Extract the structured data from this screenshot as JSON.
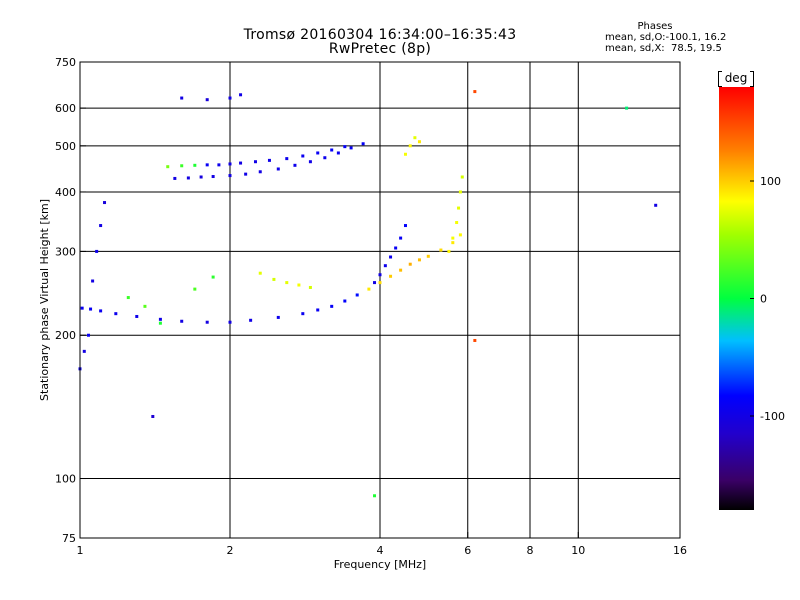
{
  "title": "Tromsø 20160304 16:34:00–16:35:43",
  "subtitle": "RwPretec (8p)",
  "stats": {
    "heading": "Phases",
    "line_o": "mean, sd,O:-100.1, 16.2",
    "line_x": "mean, sd,X:  78.5, 19.5"
  },
  "colorbar": {
    "unit": "deg",
    "tick_labels": [
      "100",
      "0",
      "-100"
    ],
    "tick_values": [
      100,
      0,
      -100
    ],
    "range": [
      -180,
      180
    ]
  },
  "chart_data": {
    "type": "scatter",
    "xlabel": "Frequency [MHz]",
    "ylabel": "Stationary phase Virtual Height [km]",
    "xscale": "log",
    "yscale": "log",
    "xlim": [
      1,
      16
    ],
    "ylim": [
      75,
      750
    ],
    "x_ticks": [
      1,
      2,
      4,
      6,
      8,
      10,
      16
    ],
    "y_ticks": [
      75,
      100,
      200,
      300,
      400,
      500,
      600,
      750
    ],
    "grid_x": [
      2,
      4,
      6,
      8,
      10
    ],
    "grid_y": [
      100,
      200,
      300,
      400,
      500,
      600
    ],
    "grid": true,
    "color_variable": "phase (deg)",
    "series": [
      {
        "x": [
          1.01,
          1.05,
          1.1,
          1.18,
          1.3,
          1.45,
          1.6,
          1.8,
          2.0,
          2.2,
          2.5,
          2.8,
          3.0,
          3.2,
          3.4,
          3.6,
          3.8,
          4.0,
          4.2,
          4.4,
          4.6,
          4.8,
          5.0,
          5.3,
          5.6,
          5.8
        ],
        "y": [
          228,
          227,
          225,
          222,
          219,
          216,
          214,
          213,
          213,
          215,
          218,
          222,
          226,
          230,
          236,
          243,
          250,
          258,
          266,
          274,
          282,
          288,
          293,
          302,
          313,
          325
        ],
        "phase": [
          -90,
          -90,
          -92,
          -94,
          -96,
          -98,
          -100,
          -102,
          -100,
          -98,
          -95,
          -92,
          -90,
          -88,
          -85,
          -80,
          90,
          95,
          100,
          105,
          110,
          105,
          100,
          95,
          90,
          85
        ]
      },
      {
        "x": [
          1.55,
          1.65,
          1.75,
          1.85,
          2.0,
          2.15,
          2.3,
          2.5,
          2.7,
          2.9,
          3.1,
          3.3,
          3.5,
          3.7
        ],
        "y": [
          427,
          428,
          430,
          431,
          433,
          436,
          441,
          447,
          455,
          463,
          472,
          483,
          495,
          505
        ],
        "phase": [
          -100,
          -102,
          -104,
          -100,
          -100,
          -98,
          -100,
          -96,
          -95,
          -98,
          -94,
          -92,
          -90,
          -88
        ]
      },
      {
        "x": [
          1.5,
          1.6,
          1.7,
          1.8,
          1.9,
          2.0,
          2.1,
          2.25,
          2.4,
          2.6,
          2.8,
          3.0,
          3.2,
          3.4
        ],
        "y": [
          452,
          454,
          455,
          456,
          456,
          458,
          460,
          463,
          466,
          470,
          476,
          483,
          490,
          498
        ],
        "phase": [
          40,
          20,
          10,
          -90,
          -95,
          -100,
          -100,
          -98,
          -96,
          -94,
          -92,
          -90,
          -88,
          -86
        ]
      },
      {
        "x": [
          3.9,
          4.0,
          4.1,
          4.2,
          4.3,
          4.4,
          4.5
        ],
        "y": [
          258,
          268,
          280,
          292,
          305,
          320,
          340
        ],
        "phase": [
          -100,
          -100,
          -95,
          -95,
          -90,
          -90,
          -85
        ]
      },
      {
        "x": [
          5.5,
          5.6,
          5.7,
          5.75,
          5.8,
          5.85
        ],
        "y": [
          300,
          320,
          345,
          370,
          400,
          430
        ],
        "phase": [
          85,
          80,
          80,
          75,
          75,
          70
        ]
      },
      {
        "x": [
          2.3,
          2.45,
          2.6,
          2.75,
          2.9
        ],
        "y": [
          270,
          262,
          258,
          255,
          252
        ],
        "phase": [
          75,
          70,
          75,
          80,
          70
        ]
      },
      {
        "x": [
          1.0,
          1.02,
          1.04,
          1.06,
          1.08,
          1.1,
          1.12
        ],
        "y": [
          170,
          185,
          200,
          260,
          300,
          340,
          380
        ],
        "phase": [
          -95,
          -100,
          -90,
          -100,
          -95,
          -100,
          -105
        ]
      },
      {
        "x": [
          1.25,
          1.35,
          1.45,
          1.7,
          1.85
        ],
        "y": [
          240,
          230,
          212,
          250,
          265
        ],
        "phase": [
          20,
          30,
          10,
          25,
          15
        ]
      },
      {
        "x": [
          1.6,
          1.8,
          2.0,
          2.1
        ],
        "y": [
          630,
          625,
          630,
          640
        ],
        "phase": [
          -100,
          -105,
          -100,
          -98
        ]
      },
      {
        "x": [
          4.5,
          4.6,
          4.7,
          4.8
        ],
        "y": [
          480,
          500,
          520,
          510
        ],
        "phase": [
          80,
          85,
          75,
          90
        ]
      },
      {
        "x": [
          6.2,
          6.2,
          12.5,
          14.3,
          1.4,
          3.9
        ],
        "y": [
          650,
          195,
          600,
          375,
          135,
          92
        ],
        "phase": [
          150,
          150,
          -10,
          -100,
          -110,
          10
        ]
      }
    ]
  }
}
